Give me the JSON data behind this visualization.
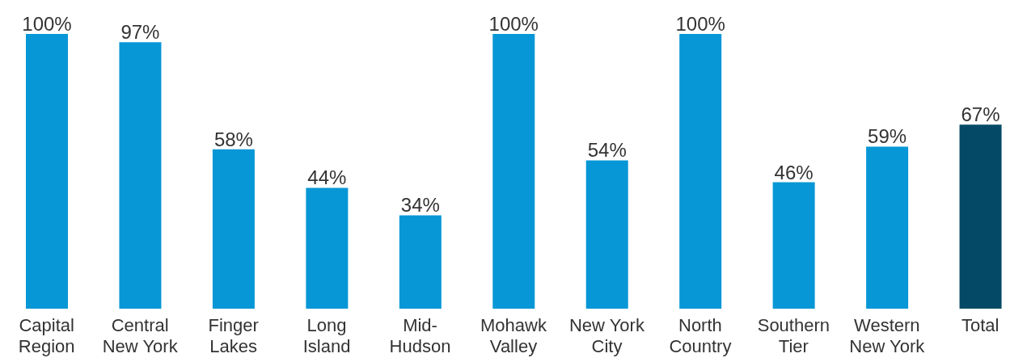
{
  "chart_data": {
    "type": "bar",
    "categories": [
      "Capital Region",
      "Central New York",
      "Finger Lakes",
      "Long Island",
      "Mid-Hudson",
      "Mohawk Valley",
      "New York City",
      "North Country",
      "Southern Tier",
      "Western New York",
      "Total"
    ],
    "values": [
      100,
      97,
      58,
      44,
      34,
      100,
      54,
      100,
      46,
      59,
      67
    ],
    "colors": [
      "#0797d6",
      "#0797d6",
      "#0797d6",
      "#0797d6",
      "#0797d6",
      "#0797d6",
      "#0797d6",
      "#0797d6",
      "#0797d6",
      "#0797d6",
      "#044a66"
    ],
    "value_labels": [
      "100%",
      "97%",
      "58%",
      "44%",
      "34%",
      "100%",
      "54%",
      "100%",
      "46%",
      "59%",
      "67%"
    ],
    "grid": false,
    "legend": false
  }
}
